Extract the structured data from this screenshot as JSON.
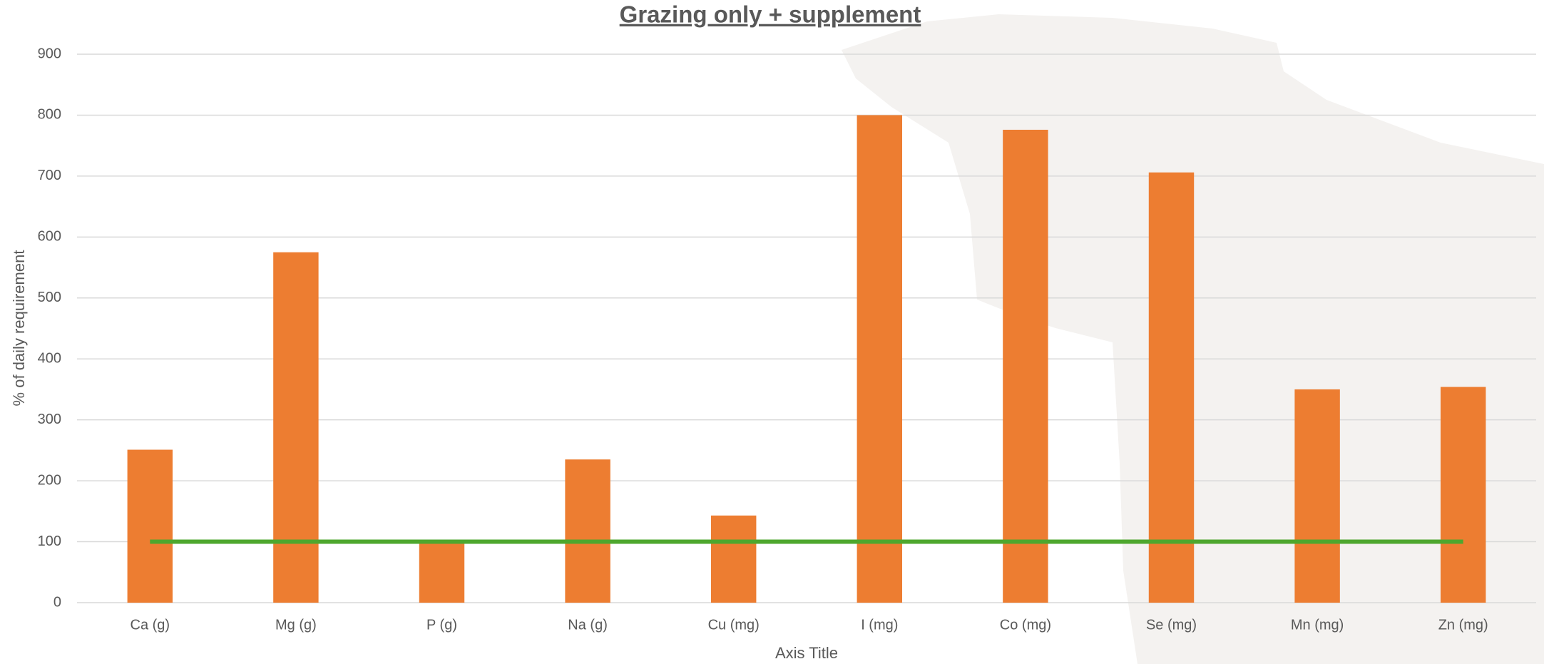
{
  "chart_data": {
    "type": "bar",
    "title": "Grazing only + supplement",
    "x_label": "Axis Title",
    "y_label": "% of daily requirement",
    "categories": [
      "Ca (g)",
      "Mg (g)",
      "P (g)",
      "Na (g)",
      "Cu (mg)",
      "I (mg)",
      "Co (mg)",
      "Se (mg)",
      "Mn (mg)",
      "Zn (mg)"
    ],
    "series": [
      {
        "type": "bar",
        "color": "#ed7d31",
        "values": [
          251,
          575,
          100,
          235,
          143,
          800,
          776,
          706,
          350,
          354
        ]
      },
      {
        "type": "line",
        "color": "#4ea72e",
        "values": [
          100,
          100,
          100,
          100,
          100,
          100,
          100,
          100,
          100,
          100
        ]
      }
    ],
    "ylim": [
      0,
      900
    ],
    "yticks": [
      0,
      100,
      200,
      300,
      400,
      500,
      600,
      700,
      800,
      900
    ],
    "grid": true
  }
}
